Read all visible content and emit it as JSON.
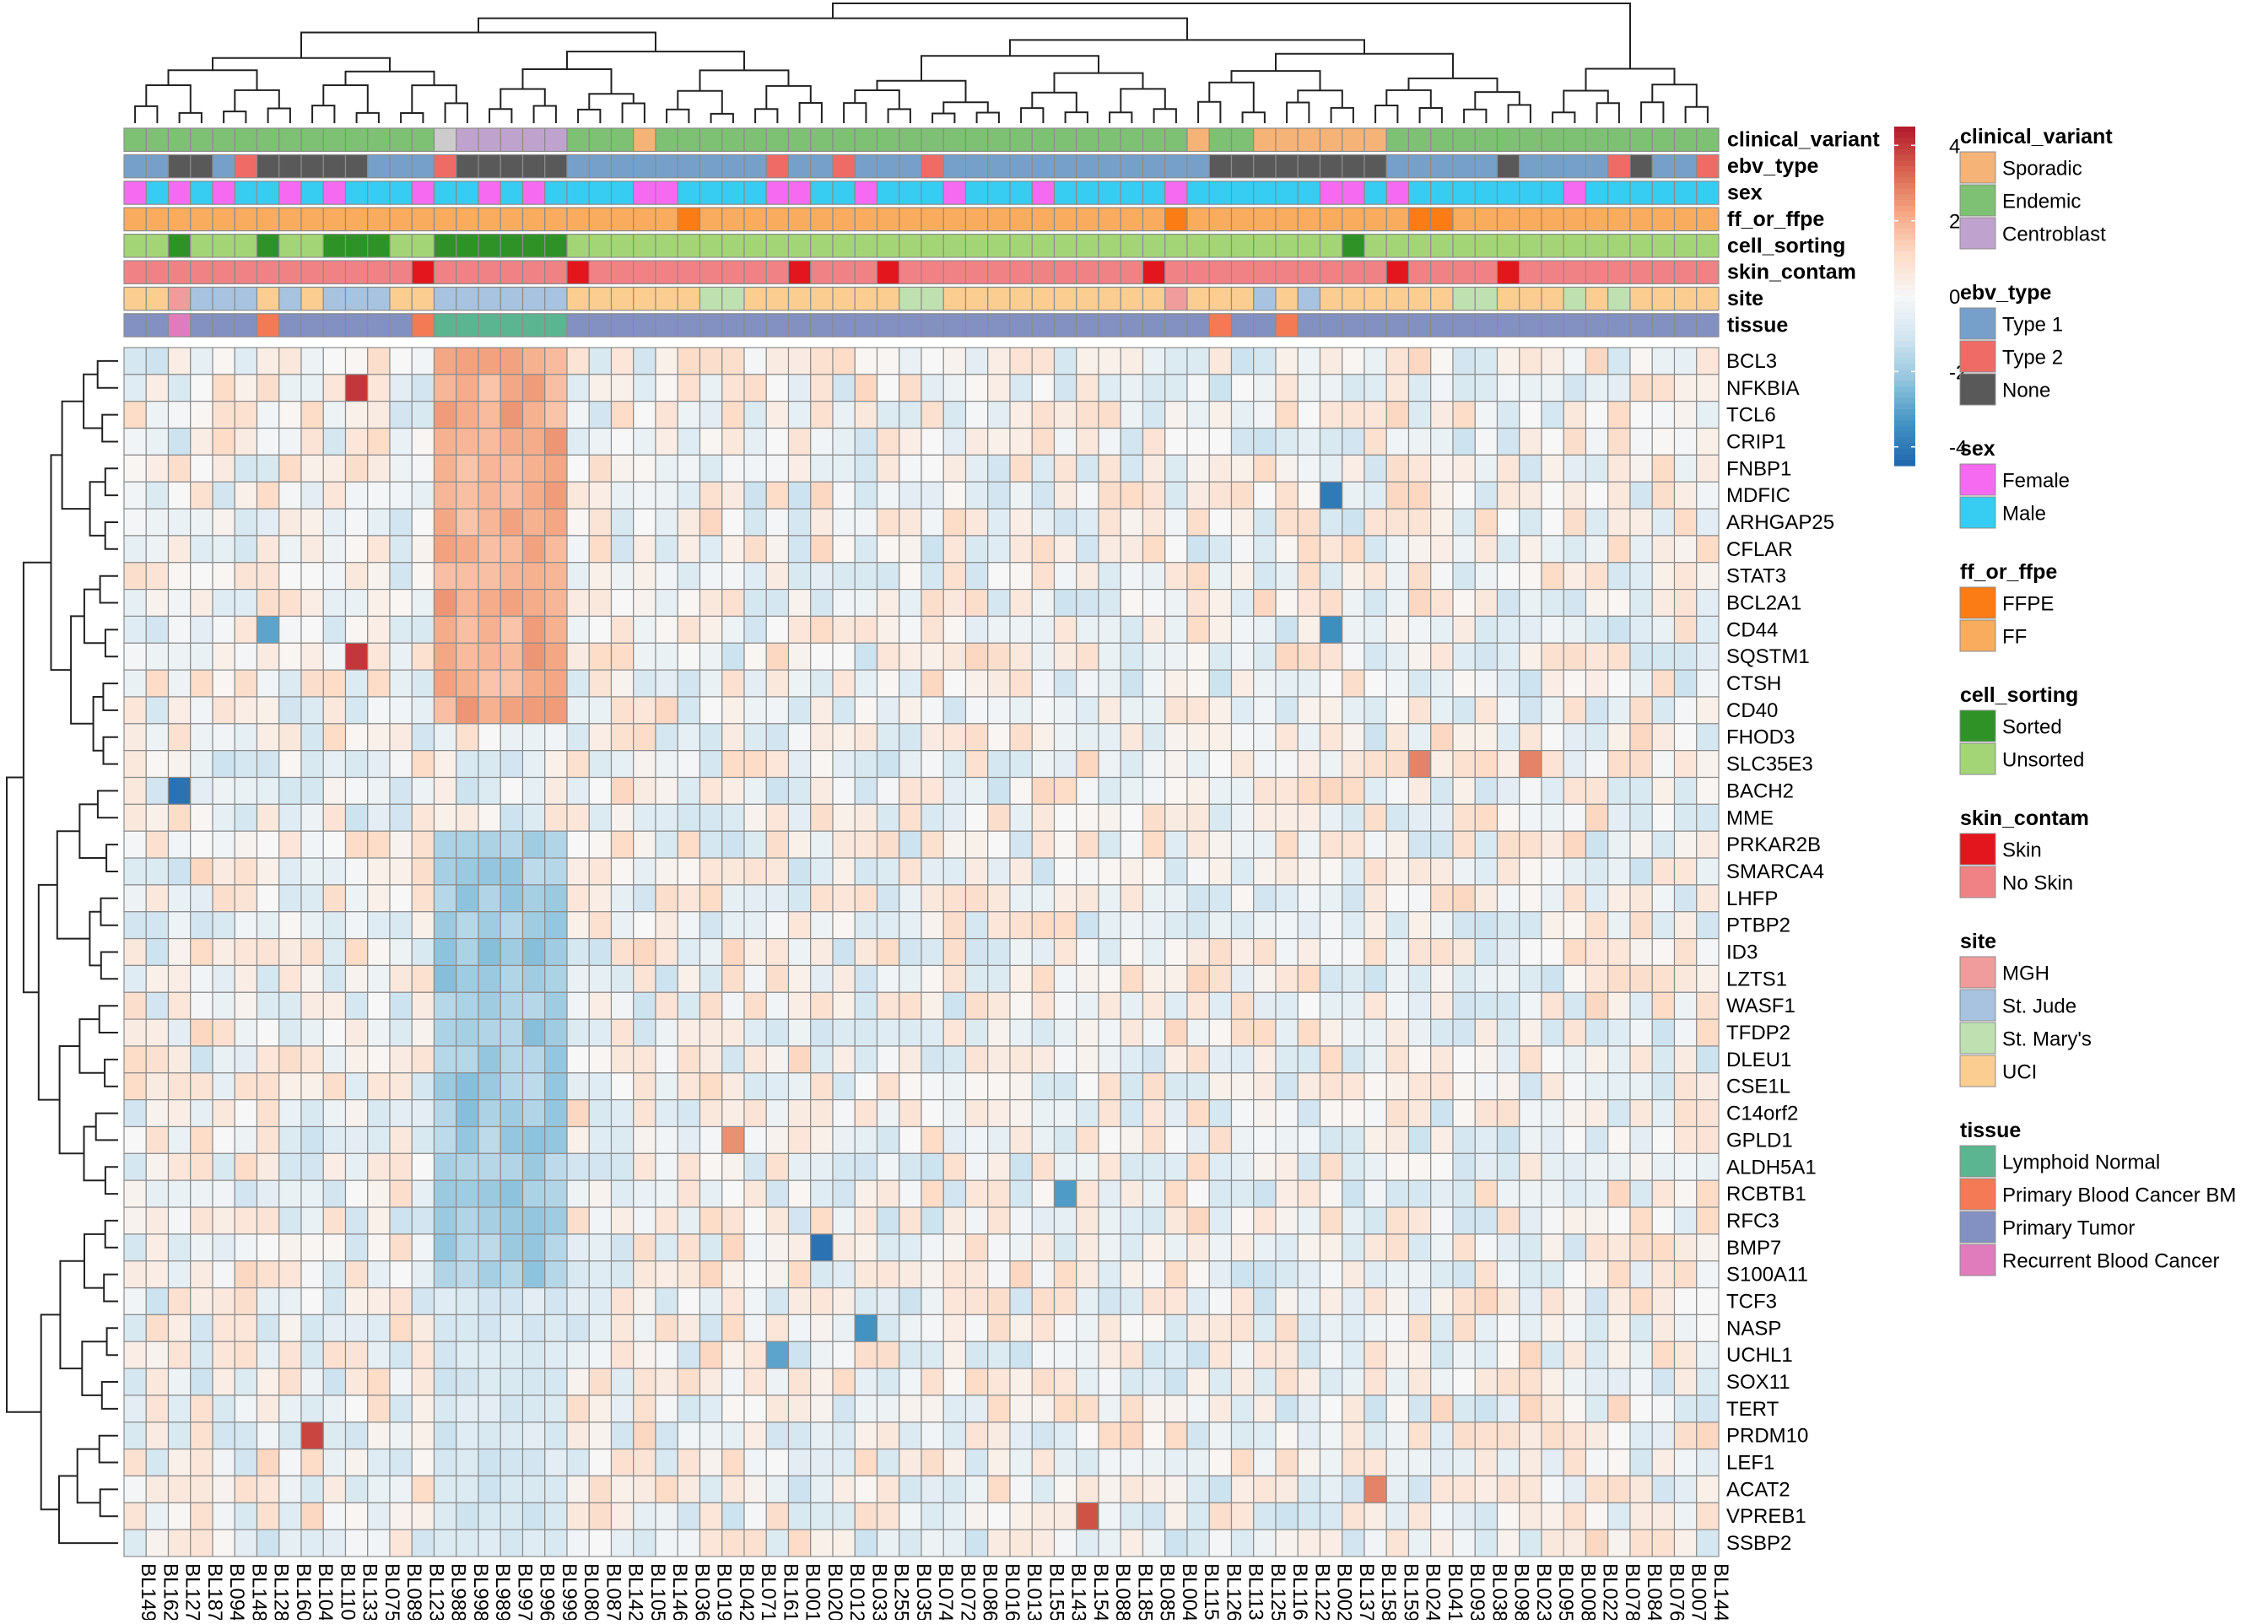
{
  "chart_data": {
    "type": "heatmap",
    "title": "",
    "columns": [
      "BL149",
      "BL162",
      "BL127",
      "BL187",
      "BL094",
      "BL148",
      "BL128",
      "BL160",
      "BL104",
      "BL110",
      "BL133",
      "BL075",
      "BL089",
      "BL123",
      "BL988",
      "BL998",
      "BL989",
      "BL997",
      "BL996",
      "BL999",
      "BL080",
      "BL087",
      "BL142",
      "BL105",
      "BL146",
      "BL036",
      "BL019",
      "BL042",
      "BL071",
      "BL161",
      "BL001",
      "BL020",
      "BL012",
      "BL033",
      "BL255",
      "BL035",
      "BL074",
      "BL072",
      "BL086",
      "BL016",
      "BL013",
      "BL155",
      "BL143",
      "BL154",
      "BL088",
      "BL185",
      "BL085",
      "BL004",
      "BL115",
      "BL126",
      "BL113",
      "BL125",
      "BL116",
      "BL122",
      "BL002",
      "BL137",
      "BL158",
      "BL159",
      "BL024",
      "BL041",
      "BL093",
      "BL038",
      "BL098",
      "BL023",
      "BL095",
      "BL008",
      "BL022",
      "BL078",
      "BL084",
      "BL076",
      "BL007",
      "BL144"
    ],
    "rows": [
      "BCL3",
      "NFKBIA",
      "TCL6",
      "CRIP1",
      "FNBP1",
      "MDFIC",
      "ARHGAP25",
      "CFLAR",
      "STAT3",
      "BCL2A1",
      "CD44",
      "SQSTM1",
      "CTSH",
      "CD40",
      "FHOD3",
      "SLC35E3",
      "BACH2",
      "MME",
      "PRKAR2B",
      "SMARCA4",
      "LHFP",
      "PTBP2",
      "ID3",
      "LZTS1",
      "WASF1",
      "TFDP2",
      "DLEU1",
      "CSE1L",
      "C14orf2",
      "GPLD1",
      "ALDH5A1",
      "RCBTB1",
      "RFC3",
      "BMP7",
      "S100A11",
      "TCF3",
      "NASP",
      "UCHL1",
      "SOX11",
      "TERT",
      "PRDM10",
      "LEF1",
      "ACAT2",
      "VPREB1",
      "SSBP2"
    ],
    "colorscale": {
      "range": [
        -4.5,
        4.5
      ],
      "ticks": [
        "4",
        "2",
        "0",
        "-2",
        "-4"
      ],
      "tick_values": [
        4,
        2,
        0,
        -2,
        -4
      ],
      "colors": [
        "#2166ac",
        "#4393c3",
        "#92c5de",
        "#d1e5f0",
        "#f7f7f7",
        "#fddbc7",
        "#f4a582",
        "#d6604d",
        "#b2182b"
      ]
    },
    "notable_cells": [
      {
        "row": "NFKBIA",
        "col": "BL133",
        "value": 4.0
      },
      {
        "row": "SQSTM1",
        "col": "BL133",
        "value": 4.0
      },
      {
        "row": "PRDM10",
        "col": "BL104",
        "value": 3.8
      },
      {
        "row": "VPREB1",
        "col": "BL154",
        "value": 3.6
      },
      {
        "row": "SLC35E3",
        "col": "BL024",
        "value": 2.8
      },
      {
        "row": "SLC35E3",
        "col": "BL023",
        "value": 2.8
      },
      {
        "row": "ACAT2",
        "col": "BL158",
        "value": 2.8
      },
      {
        "row": "GPLD1",
        "col": "BL042",
        "value": 2.6
      },
      {
        "row": "BACH2",
        "col": "BL127",
        "value": -4.2
      },
      {
        "row": "BMP7",
        "col": "BL020",
        "value": -4.2
      },
      {
        "row": "MDFIC",
        "col": "BL002",
        "value": -4.0
      },
      {
        "row": "CD44",
        "col": "BL002",
        "value": -3.5
      },
      {
        "row": "NASP",
        "col": "BL033",
        "value": -3.4
      },
      {
        "row": "RCBTB1",
        "col": "BL143",
        "value": -3.2
      },
      {
        "row": "UCHL1",
        "col": "BL161",
        "value": -3.0
      },
      {
        "row": "CD44",
        "col": "BL128",
        "value": -3.0
      }
    ],
    "annotation_tracks": [
      {
        "name": "clinical_variant",
        "codes": "EEEEEEEEEEEEEEACCCCCEEESEEEEEEEEEEEEEEEEEEEEEEEESEESSSSSSEEEEEEEEEEEEEEEE",
        "legend": [
          {
            "key": "S",
            "label": "Sporadic",
            "color": "#f6b377"
          },
          {
            "key": "E",
            "label": "Endemic",
            "color": "#7ec074"
          },
          {
            "key": "C",
            "label": "Centroblast",
            "color": "#c0a2ce"
          }
        ]
      },
      {
        "name": "ebv_type",
        "codes": "OONNOTNNNNNOOOTNNNNNOOOOOOOOOTOOTOOOTOOOOOOOOOOOONNNNNNNNOOOOONOOOOTNOOTOO",
        "legend": [
          {
            "key": "O",
            "label": "Type 1",
            "color": "#76a0c9"
          },
          {
            "key": "T",
            "label": "Type 2",
            "color": "#ef6b66"
          },
          {
            "key": "N",
            "label": "None",
            "color": "#595959"
          }
        ]
      },
      {
        "name": "sex",
        "codes": "FMFMFMMFMFMMMFMMFMFMMMMFFMMMMFFMMFMMMFMMMFMMMMMFMMMMMMFFMFMMMMMMMFMMMMMMF",
        "legend": [
          {
            "key": "F",
            "label": "Female",
            "color": "#f66af2"
          },
          {
            "key": "M",
            "label": "Male",
            "color": "#37ccf2"
          }
        ]
      },
      {
        "name": "ff_or_ffpe",
        "codes": "FFFFFFFFFFFFFFFFFFFFFFFFFXFFFFFFFFFFFFFFFFFFFFFXFFFFFFFFFFXXFFFFFFFFFFFFF",
        "legend": [
          {
            "key": "X",
            "label": "FFPE",
            "color": "#fb7b14"
          },
          {
            "key": "F",
            "label": "FF",
            "color": "#f9ac5d"
          }
        ]
      },
      {
        "name": "cell_sorting",
        "codes": "UUSUUUSUUSSSUUSSSSSSUUUUUUUUUUUUUUUUUUUUUUUUUUUUUUUUUUUSUUUUUUUUUUUUUUUUU",
        "legend": [
          {
            "key": "S",
            "label": "Sorted",
            "color": "#2e9227"
          },
          {
            "key": "U",
            "label": "Unsorted",
            "color": "#a3d576"
          }
        ]
      },
      {
        "name": "skin_contam",
        "codes": "NNNNNNNNNNNNNKNNNNNNKNNNNNNNNNKNNNKNNNNNNNNNNNKNNNNNNNNNNKNNNNKNNNNNNNNNN",
        "legend": [
          {
            "key": "K",
            "label": "Skin",
            "color": "#e2161c"
          },
          {
            "key": "N",
            "label": "No Skin",
            "color": "#f08286"
          }
        ]
      },
      {
        "name": "site",
        "codes": "UUMJJJUJUJJJUUJJJJJJUUUUUUVVUUUUUUUVVUUUUUUUUUUMUUUJUJUUUUUUVVUUUVUVUUUUU",
        "legend": [
          {
            "key": "M",
            "label": "MGH",
            "color": "#f19c9c"
          },
          {
            "key": "J",
            "label": "St. Jude",
            "color": "#a7c3df"
          },
          {
            "key": "V",
            "label": "St. Mary's",
            "color": "#bfe0b0"
          },
          {
            "key": "U",
            "label": "UCI",
            "color": "#fbcd90"
          }
        ]
      },
      {
        "name": "tissue",
        "codes": "TTRTTTBTTTTTTBLLLLLLTTTTTTTTTTTTTTTTTTTTTTTTTTTTTBTTBTTTTTTTTTTTTTTTTTTTTT",
        "legend": [
          {
            "key": "L",
            "label": "Lymphoid Normal",
            "color": "#5bb590"
          },
          {
            "key": "B",
            "label": "Primary Blood Cancer BM",
            "color": "#f37a55"
          },
          {
            "key": "T",
            "label": "Primary Tumor",
            "color": "#8290c2"
          },
          {
            "key": "R",
            "label": "Recurrent Blood Cancer",
            "color": "#e07cbc"
          }
        ]
      }
    ],
    "row_dendrogram": true,
    "column_dendrogram": true,
    "grid": true,
    "legend_position": "right"
  }
}
